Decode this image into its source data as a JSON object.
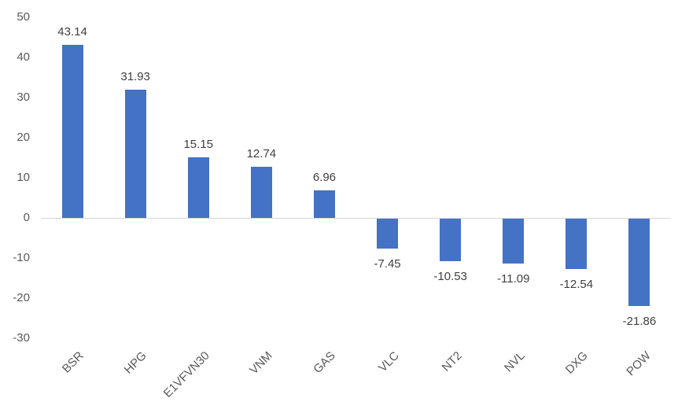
{
  "chart_data": {
    "type": "bar",
    "categories": [
      "BSR",
      "HPG",
      "E1VFVN30",
      "VNM",
      "GAS",
      "VLC",
      "NT2",
      "NVL",
      "DXG",
      "POW"
    ],
    "values": [
      43.14,
      31.93,
      15.15,
      12.74,
      6.96,
      -7.45,
      -10.53,
      -11.09,
      -12.54,
      -21.86
    ],
    "data_labels": [
      "43.14",
      "31.93",
      "15.15",
      "12.74",
      "6.96",
      "-7.45",
      "-10.53",
      "-11.09",
      "-12.54",
      "-21.86"
    ],
    "y_ticks": [
      50,
      40,
      30,
      20,
      10,
      0,
      -10,
      -20,
      -30
    ],
    "ylim": [
      -30,
      50
    ],
    "grid": false,
    "legend": "none",
    "colors": {
      "bar": "#4472C4",
      "axis_line": "#d6d6d6",
      "tick_label": "#595959",
      "data_label": "#404040",
      "background": "#ffffff"
    }
  }
}
